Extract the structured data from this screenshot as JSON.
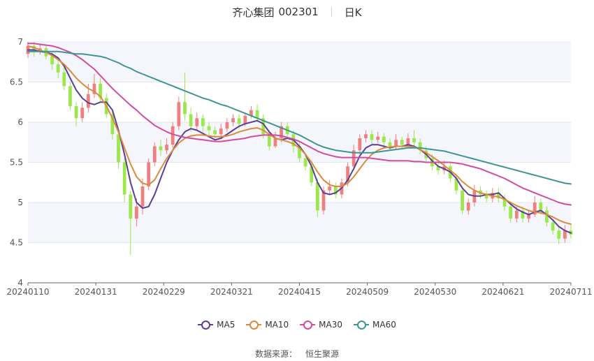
{
  "header": {
    "stock_name": "齐心集团",
    "stock_code": "002301",
    "period": "日K"
  },
  "legend": [
    {
      "label": "MA5",
      "color": "#5b3f96"
    },
    {
      "label": "MA10",
      "color": "#dc8a3d"
    },
    {
      "label": "MA30",
      "color": "#d04da0"
    },
    {
      "label": "MA60",
      "color": "#3f9595"
    }
  ],
  "source": {
    "label": "数据来源：",
    "value": "恒生聚源"
  },
  "chart_data": {
    "type": "candlestick",
    "ylim": [
      4,
      7
    ],
    "y_ticks": [
      "4",
      "4.5",
      "5",
      "5.5",
      "6",
      "6.5",
      "7"
    ],
    "x_labels": [
      "20240110",
      "20240131",
      "20240229",
      "20240321",
      "20240415",
      "20240509",
      "20240530",
      "20240621",
      "20240711"
    ],
    "colors": {
      "up": "#f07f7f",
      "down": "#9be84b"
    },
    "candles": [
      [
        6.85,
        6.95,
        7.0,
        6.8
      ],
      [
        6.95,
        6.88,
        7.0,
        6.82
      ],
      [
        6.88,
        6.92,
        6.98,
        6.84
      ],
      [
        6.92,
        6.82,
        6.95,
        6.78
      ],
      [
        6.82,
        6.72,
        6.88,
        6.65
      ],
      [
        6.72,
        6.62,
        6.78,
        6.55
      ],
      [
        6.62,
        6.45,
        6.68,
        6.4
      ],
      [
        6.45,
        6.2,
        6.5,
        6.15
      ],
      [
        6.2,
        6.05,
        6.25,
        5.95
      ],
      [
        6.05,
        6.18,
        6.25,
        6.0
      ],
      [
        6.18,
        6.35,
        6.48,
        6.12
      ],
      [
        6.35,
        6.48,
        6.6,
        6.3
      ],
      [
        6.48,
        6.3,
        6.55,
        6.25
      ],
      [
        6.3,
        6.1,
        6.36,
        6.05
      ],
      [
        6.1,
        5.85,
        6.15,
        5.78
      ],
      [
        5.85,
        5.5,
        5.9,
        5.42
      ],
      [
        5.5,
        5.1,
        5.55,
        5.0
      ],
      [
        5.1,
        4.8,
        5.15,
        4.35
      ],
      [
        4.8,
        4.95,
        5.05,
        4.7
      ],
      [
        4.95,
        5.2,
        5.3,
        4.85
      ],
      [
        5.2,
        5.5,
        5.55,
        5.15
      ],
      [
        5.5,
        5.7,
        5.75,
        5.45
      ],
      [
        5.7,
        5.65,
        5.78,
        5.58
      ],
      [
        5.65,
        5.72,
        5.8,
        5.6
      ],
      [
        5.72,
        5.95,
        6.0,
        5.68
      ],
      [
        5.95,
        6.25,
        6.32,
        5.9
      ],
      [
        6.25,
        6.1,
        6.62,
        6.02
      ],
      [
        6.1,
        5.95,
        6.18,
        5.88
      ],
      [
        5.95,
        6.05,
        6.12,
        5.9
      ],
      [
        6.05,
        5.95,
        6.1,
        5.88
      ],
      [
        5.95,
        5.9,
        6.0,
        5.82
      ],
      [
        5.9,
        5.85,
        5.95,
        5.8
      ],
      [
        5.85,
        5.92,
        5.98,
        5.8
      ],
      [
        5.92,
        6.0,
        6.05,
        5.88
      ],
      [
        6.0,
        6.05,
        6.1,
        5.95
      ],
      [
        6.05,
        5.98,
        6.1,
        5.92
      ],
      [
        5.98,
        6.08,
        6.12,
        5.95
      ],
      [
        6.08,
        6.15,
        6.2,
        6.05
      ],
      [
        6.15,
        6.05,
        6.22,
        6.0
      ],
      [
        6.05,
        5.85,
        6.1,
        5.8
      ],
      [
        5.85,
        5.7,
        5.9,
        5.65
      ],
      [
        5.7,
        5.8,
        5.88,
        5.68
      ],
      [
        5.8,
        5.95,
        6.0,
        5.75
      ],
      [
        5.95,
        5.85,
        6.0,
        5.8
      ],
      [
        5.85,
        5.7,
        5.9,
        5.62
      ],
      [
        5.7,
        5.55,
        5.75,
        5.5
      ],
      [
        5.55,
        5.45,
        5.6,
        5.4
      ],
      [
        5.45,
        5.25,
        5.5,
        5.2
      ],
      [
        5.25,
        4.9,
        5.3,
        4.82
      ],
      [
        4.9,
        5.15,
        5.2,
        4.85
      ],
      [
        5.15,
        5.2,
        5.28,
        5.1
      ],
      [
        5.2,
        5.1,
        5.25,
        5.05
      ],
      [
        5.1,
        5.25,
        5.3,
        5.05
      ],
      [
        5.25,
        5.45,
        5.5,
        5.2
      ],
      [
        5.45,
        5.65,
        5.72,
        5.4
      ],
      [
        5.65,
        5.8,
        5.85,
        5.6
      ],
      [
        5.8,
        5.85,
        5.9,
        5.75
      ],
      [
        5.85,
        5.78,
        5.9,
        5.72
      ],
      [
        5.78,
        5.82,
        5.88,
        5.74
      ],
      [
        5.82,
        5.75,
        5.86,
        5.7
      ],
      [
        5.75,
        5.7,
        5.8,
        5.65
      ],
      [
        5.7,
        5.78,
        5.85,
        5.66
      ],
      [
        5.78,
        5.72,
        5.82,
        5.68
      ],
      [
        5.72,
        5.8,
        5.86,
        5.7
      ],
      [
        5.8,
        5.75,
        5.9,
        5.7
      ],
      [
        5.75,
        5.65,
        5.8,
        5.6
      ],
      [
        5.65,
        5.55,
        5.7,
        5.5
      ],
      [
        5.55,
        5.45,
        5.6,
        5.4
      ],
      [
        5.45,
        5.4,
        5.5,
        5.35
      ],
      [
        5.4,
        5.45,
        5.52,
        5.35
      ],
      [
        5.45,
        5.3,
        5.5,
        5.25
      ],
      [
        5.3,
        5.15,
        5.35,
        5.1
      ],
      [
        5.15,
        4.9,
        5.2,
        4.85
      ],
      [
        4.9,
        5.0,
        5.05,
        4.85
      ],
      [
        5.0,
        5.15,
        5.22,
        4.95
      ],
      [
        5.15,
        5.1,
        5.2,
        5.05
      ],
      [
        5.1,
        5.05,
        5.15,
        5.0
      ],
      [
        5.05,
        5.12,
        5.18,
        5.0
      ],
      [
        5.12,
        5.05,
        5.18,
        5.0
      ],
      [
        5.05,
        4.95,
        5.1,
        4.9
      ],
      [
        4.95,
        4.8,
        5.0,
        4.75
      ],
      [
        4.8,
        4.9,
        4.95,
        4.75
      ],
      [
        4.9,
        4.8,
        4.95,
        4.75
      ],
      [
        4.8,
        4.85,
        4.9,
        4.75
      ],
      [
        4.85,
        5.0,
        5.08,
        4.82
      ],
      [
        5.0,
        4.9,
        5.05,
        4.85
      ],
      [
        4.9,
        4.75,
        4.95,
        4.7
      ],
      [
        4.75,
        4.65,
        4.8,
        4.6
      ],
      [
        4.65,
        4.55,
        4.7,
        4.48
      ],
      [
        4.55,
        4.65,
        4.72,
        4.5
      ],
      [
        4.65,
        4.6,
        4.72,
        4.55
      ]
    ],
    "ma": {
      "MA5": [
        6.9,
        6.9,
        6.88,
        6.87,
        6.85,
        6.8,
        6.7,
        6.55,
        6.4,
        6.3,
        6.24,
        6.22,
        6.25,
        6.25,
        6.15,
        5.9,
        5.6,
        5.25,
        5.0,
        4.93,
        4.95,
        5.1,
        5.3,
        5.5,
        5.65,
        5.78,
        5.88,
        5.92,
        5.9,
        5.86,
        5.82,
        5.78,
        5.8,
        5.85,
        5.9,
        5.95,
        5.98,
        6.0,
        6.02,
        5.98,
        5.88,
        5.8,
        5.78,
        5.8,
        5.78,
        5.7,
        5.6,
        5.45,
        5.25,
        5.12,
        5.1,
        5.12,
        5.18,
        5.28,
        5.42,
        5.58,
        5.68,
        5.72,
        5.72,
        5.7,
        5.68,
        5.7,
        5.7,
        5.72,
        5.7,
        5.66,
        5.6,
        5.52,
        5.45,
        5.42,
        5.38,
        5.3,
        5.18,
        5.1,
        5.08,
        5.08,
        5.1,
        5.1,
        5.12,
        5.05,
        4.98,
        4.92,
        4.88,
        4.85,
        4.88,
        4.9,
        4.85,
        4.78,
        4.7,
        4.65,
        4.62
      ],
      "MA10": [
        6.95,
        6.93,
        6.9,
        6.87,
        6.83,
        6.78,
        6.72,
        6.64,
        6.55,
        6.48,
        6.42,
        6.38,
        6.32,
        6.2,
        6.05,
        5.88,
        5.68,
        5.48,
        5.32,
        5.24,
        5.22,
        5.28,
        5.42,
        5.55,
        5.65,
        5.74,
        5.8,
        5.83,
        5.84,
        5.84,
        5.83,
        5.82,
        5.82,
        5.83,
        5.85,
        5.88,
        5.9,
        5.92,
        5.93,
        5.9,
        5.85,
        5.8,
        5.78,
        5.76,
        5.73,
        5.68,
        5.6,
        5.5,
        5.38,
        5.28,
        5.22,
        5.2,
        5.2,
        5.24,
        5.32,
        5.42,
        5.52,
        5.6,
        5.65,
        5.68,
        5.69,
        5.7,
        5.7,
        5.7,
        5.69,
        5.66,
        5.62,
        5.57,
        5.52,
        5.46,
        5.4,
        5.34,
        5.26,
        5.2,
        5.15,
        5.12,
        5.1,
        5.08,
        5.07,
        5.04,
        5.0,
        4.96,
        4.93,
        4.9,
        4.88,
        4.87,
        4.85,
        4.82,
        4.78,
        4.75,
        4.73
      ],
      "MA30": [
        6.98,
        6.98,
        6.97,
        6.96,
        6.95,
        6.93,
        6.9,
        6.87,
        6.83,
        6.78,
        6.72,
        6.66,
        6.58,
        6.5,
        6.42,
        6.35,
        6.28,
        6.21,
        6.15,
        6.08,
        6.02,
        5.96,
        5.92,
        5.88,
        5.85,
        5.83,
        5.81,
        5.8,
        5.79,
        5.78,
        5.77,
        5.76,
        5.76,
        5.77,
        5.78,
        5.79,
        5.8,
        5.82,
        5.83,
        5.84,
        5.84,
        5.84,
        5.83,
        5.81,
        5.79,
        5.76,
        5.72,
        5.68,
        5.64,
        5.61,
        5.59,
        5.57,
        5.56,
        5.56,
        5.56,
        5.56,
        5.56,
        5.55,
        5.54,
        5.53,
        5.52,
        5.52,
        5.52,
        5.52,
        5.51,
        5.51,
        5.5,
        5.5,
        5.5,
        5.5,
        5.5,
        5.49,
        5.48,
        5.46,
        5.44,
        5.42,
        5.39,
        5.36,
        5.33,
        5.3,
        5.26,
        5.22,
        5.18,
        5.15,
        5.12,
        5.09,
        5.06,
        5.03,
        5.0,
        4.98,
        4.97
      ],
      "MA60": [
        6.88,
        6.88,
        6.88,
        6.88,
        6.88,
        6.88,
        6.87,
        6.86,
        6.85,
        6.85,
        6.84,
        6.83,
        6.82,
        6.8,
        6.77,
        6.74,
        6.7,
        6.67,
        6.63,
        6.6,
        6.57,
        6.54,
        6.51,
        6.48,
        6.45,
        6.42,
        6.39,
        6.36,
        6.33,
        6.3,
        6.28,
        6.25,
        6.22,
        6.2,
        6.17,
        6.14,
        6.11,
        6.08,
        6.05,
        6.02,
        5.99,
        5.96,
        5.93,
        5.9,
        5.87,
        5.84,
        5.8,
        5.76,
        5.72,
        5.69,
        5.67,
        5.65,
        5.64,
        5.63,
        5.62,
        5.62,
        5.62,
        5.62,
        5.63,
        5.64,
        5.65,
        5.66,
        5.67,
        5.68,
        5.68,
        5.68,
        5.67,
        5.66,
        5.65,
        5.64,
        5.62,
        5.6,
        5.58,
        5.56,
        5.54,
        5.52,
        5.5,
        5.48,
        5.46,
        5.44,
        5.42,
        5.4,
        5.38,
        5.36,
        5.34,
        5.32,
        5.3,
        5.28,
        5.26,
        5.24,
        5.23
      ]
    }
  }
}
